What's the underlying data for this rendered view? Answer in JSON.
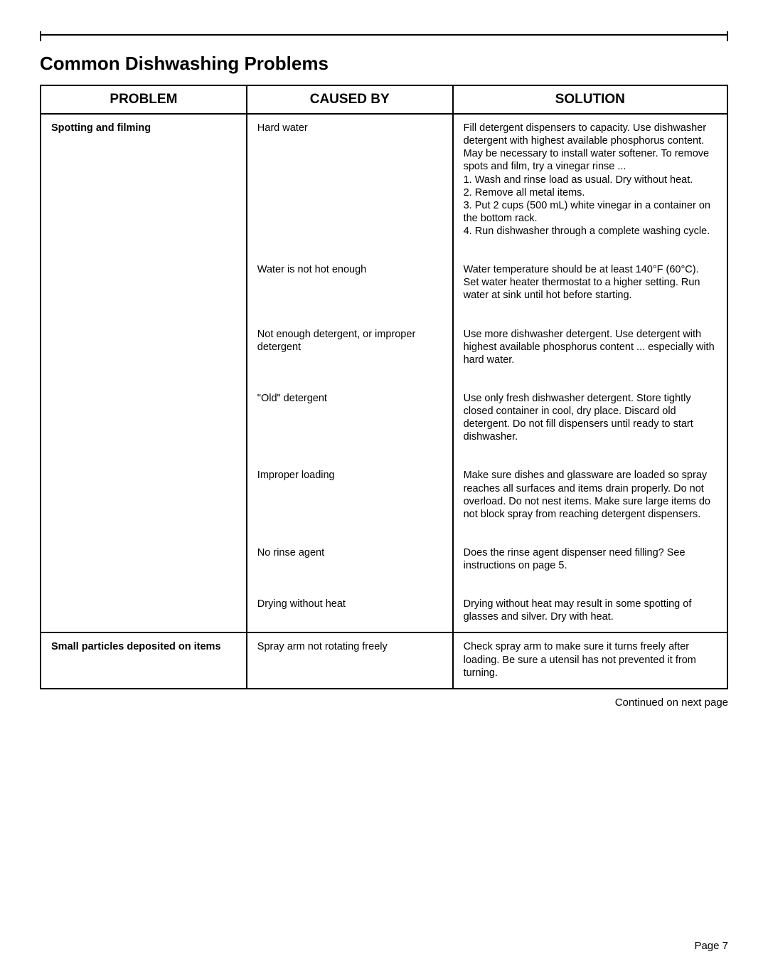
{
  "title": "Common Dishwashing Problems",
  "headers": {
    "problem": "PROBLEM",
    "cause": "CAUSED BY",
    "solution": "SOLUTION"
  },
  "rows": [
    {
      "problem": "Spotting and filming",
      "cause": "Hard water",
      "solution": "Fill detergent dispensers to capacity. Use dishwasher detergent with highest available phosphorus content. May be necessary to install water softener. To remove spots and film, try a vinegar rinse ...\n1. Wash and rinse load as usual. Dry without heat.\n2. Remove all metal items.\n3. Put 2 cups (500 mL) white vinegar in a container on the bottom rack.\n4. Run dishwasher through a complete washing cycle."
    },
    {
      "problem": "",
      "cause": "Water is not hot enough",
      "solution": "Water temperature should be at least 140°F (60°C). Set water heater thermostat to a higher setting. Run water at sink until hot before starting."
    },
    {
      "problem": "",
      "cause": "Not enough detergent, or improper detergent",
      "solution": "Use more dishwasher detergent. Use detergent with highest available phosphorus content ... especially with hard water."
    },
    {
      "problem": "",
      "cause": "\"Old\" detergent",
      "solution": "Use only fresh dishwasher detergent. Store tightly closed container in cool, dry place. Discard old detergent. Do not fill dispensers until ready to start dishwasher."
    },
    {
      "problem": "",
      "cause": "Improper loading",
      "solution": "Make sure dishes and glassware are loaded so spray reaches all surfaces and items drain properly. Do not overload. Do not nest items. Make sure large items do not block spray from reaching detergent dispensers."
    },
    {
      "problem": "",
      "cause": "No rinse agent",
      "solution": "Does the rinse agent dispenser need filling? See instructions on page 5."
    },
    {
      "problem": "",
      "cause": "Drying without heat",
      "solution": "Drying without heat may result in some spotting of glasses and silver. Dry with heat."
    },
    {
      "problem": "Small particles deposited on items",
      "cause": "Spray arm not rotating freely",
      "solution": "Check spray arm to make sure it turns freely after loading. Be sure a utensil has not prevented it from turning."
    }
  ],
  "continued": "Continued on next page",
  "pageNum": "Page 7"
}
